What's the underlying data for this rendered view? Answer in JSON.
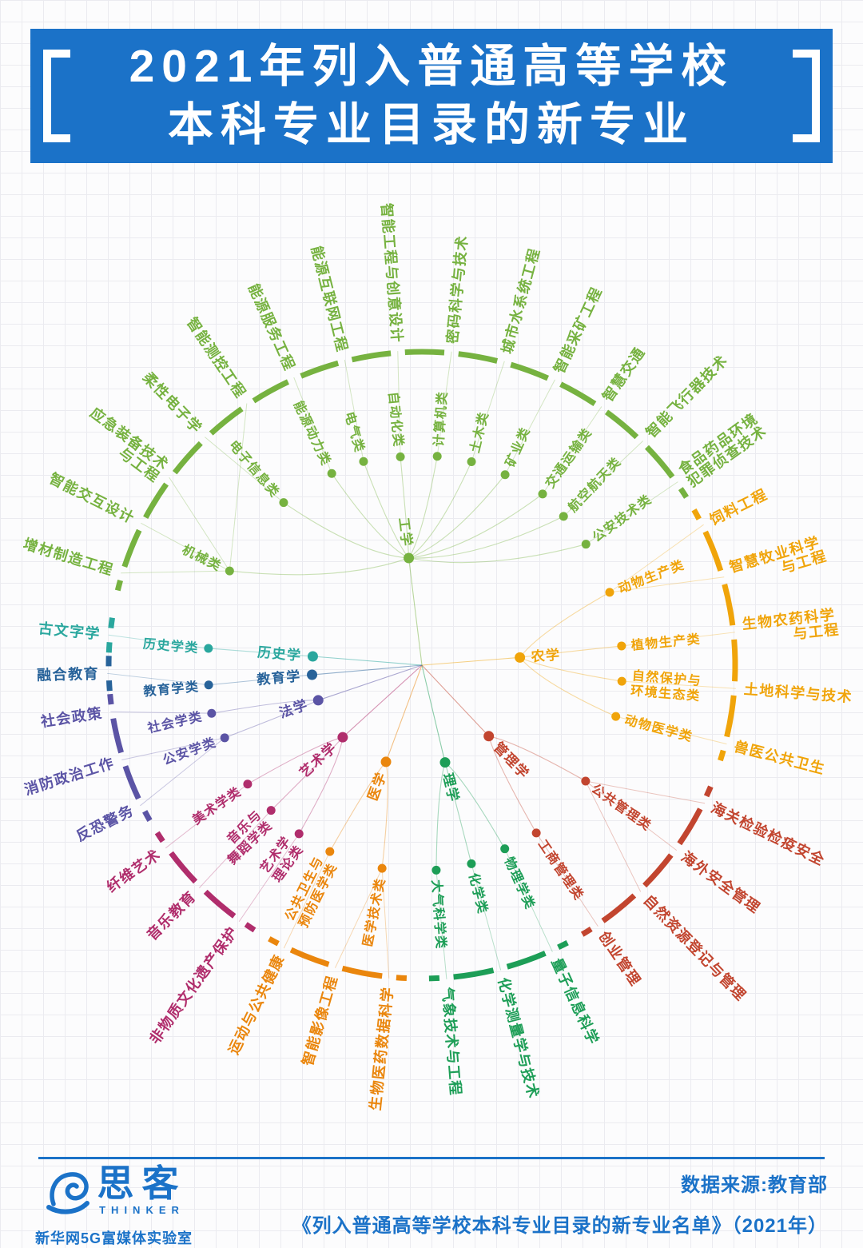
{
  "title": {
    "line1": "2021年列入普通高等学校",
    "line2": "本科专业目录的新专业"
  },
  "footer": {
    "brand": "思客",
    "brand_sub": "THINKER",
    "lab": "新华网5G富媒体实验室",
    "source_line1": "数据来源:教育部",
    "source_line2": "《列入普通高等学校本科专业目录的新专业名单》（2021年）"
  },
  "colors": {
    "banner_blue": "#1b72c8",
    "engineering": "#76b240",
    "agriculture": "#f0a40a",
    "management": "#c2452f",
    "science": "#1d9e57",
    "medicine": "#ea860d",
    "arts": "#b02d6c",
    "law": "#5b54a5",
    "education": "#28639a",
    "history": "#2aa79e"
  },
  "chart_data": {
    "type": "radial-tree",
    "title": "2021年列入普通高等学校本科专业目录的新专业",
    "center": [
      528,
      832
    ],
    "ring_radius": 392,
    "legend_position": "none",
    "grid": true,
    "disciplines": [
      {
        "name": "工学",
        "color": "#76b240",
        "angle": 353,
        "r": 135,
        "categories": [
          {
            "name": "机械类",
            "angle": 296.1,
            "r": 268
          },
          {
            "name": "电子信息类",
            "angle": 319.6,
            "r": 267
          },
          {
            "name": "能源动力类",
            "angle": 334.8,
            "r": 265
          },
          {
            "name": "电气类",
            "angle": 344,
            "r": 265
          },
          {
            "name": "自动化类",
            "angle": 354.1,
            "r": 262
          },
          {
            "name": "计算机类",
            "angle": 364.2,
            "r": 262
          },
          {
            "name": "土木类",
            "angle": 373.7,
            "r": 262
          },
          {
            "name": "矿业类",
            "angle": 383.6,
            "r": 260
          },
          {
            "name": "交通运输类",
            "angle": 395.2,
            "r": 262
          },
          {
            "name": "航空航天类",
            "angle": 403.6,
            "r": 257
          },
          {
            "name": "公安技术类",
            "angle": 413.6,
            "r": 255
          }
        ],
        "leaves": [
          {
            "name": "增材制造工程",
            "angle": 287,
            "parent": "机械类"
          },
          {
            "name": "智能交互设计",
            "angle": 296.8,
            "parent": "机械类"
          },
          {
            "name": "应急装备技术与工程",
            "lines": [
              "应急装备技术",
              "与工程"
            ],
            "angle": 306.6,
            "parent": "机械类"
          },
          {
            "name": "柔性电子学",
            "angle": 316.4,
            "parent": "电子信息类"
          },
          {
            "name": "智能测控工程",
            "angle": 326.2,
            "parent": "机械类"
          },
          {
            "name": "能源服务工程",
            "angle": 336,
            "parent": "能源动力类"
          },
          {
            "name": "能源互联网工程",
            "angle": 345.8,
            "parent": "电气类"
          },
          {
            "name": "智能工程与创意设计",
            "angle": 355.6,
            "parent": "自动化类"
          },
          {
            "name": "密码科学与技术",
            "angle": 365.4,
            "parent": "计算机类"
          },
          {
            "name": "城市水系统工程",
            "angle": 375.2,
            "parent": "土木类"
          },
          {
            "name": "智能采矿工程",
            "angle": 385,
            "parent": "矿业类"
          },
          {
            "name": "智慧交通",
            "angle": 394.8,
            "parent": "交通运输类"
          },
          {
            "name": "智能飞行器技术",
            "angle": 404.6,
            "parent": "航空航天类"
          },
          {
            "name": "食品药品环境犯罪侦查技术",
            "lines": [
              "食品药品环境",
              "犯罪侦查技术"
            ],
            "angle": 414.4,
            "parent": "公安技术类"
          }
        ]
      },
      {
        "name": "农学",
        "color": "#f0a40a",
        "angle": 85.5,
        "r": 123,
        "categories": [
          {
            "name": "动物生产类",
            "angle": 68.8,
            "r": 252
          },
          {
            "name": "植物生产类",
            "angle": 84.5,
            "r": 251
          },
          {
            "name": "自然保护与环境生态类",
            "lines": [
              "自然保护与",
              "环境生态类"
            ],
            "angle": 94.6,
            "r": 251
          },
          {
            "name": "动物医学类",
            "angle": 104.8,
            "r": 251
          }
        ],
        "leaves": [
          {
            "name": "饲料工程",
            "angle": 63.5,
            "parent": "动物生产类"
          },
          {
            "name": "智慧牧业科学与工程",
            "lines": [
              "智慧牧业科学",
              "与工程"
            ],
            "dx2": 62,
            "angle": 73.75,
            "parent": "动物生产类"
          },
          {
            "name": "生物农药科学与工程",
            "lines": [
              "生物农药科学",
              "与工程"
            ],
            "dx2": 62,
            "angle": 84,
            "parent": "植物生产类"
          },
          {
            "name": "土地科学与技术",
            "angle": 94.25,
            "parent": "自然保护与环境生态类"
          },
          {
            "name": "兽医公共卫生",
            "angle": 104.5,
            "parent": "动物医学类"
          }
        ]
      },
      {
        "name": "管理学",
        "color": "#c2452f",
        "angle": 136.7,
        "r": 122,
        "categories": [
          {
            "name": "公共管理类",
            "angle": 125.3,
            "r": 251
          },
          {
            "name": "工商管理类",
            "angle": 145.7,
            "r": 254
          }
        ],
        "leaves": [
          {
            "name": "海关检验检疫安全",
            "angle": 116,
            "parent": "公共管理类"
          },
          {
            "name": "海外安全管理",
            "angle": 126,
            "parent": "公共管理类"
          },
          {
            "name": "自然资源登记与管理",
            "angle": 136,
            "parent": "公共管理类"
          },
          {
            "name": "创业管理",
            "angle": 146,
            "parent": "工商管理类"
          }
        ]
      },
      {
        "name": "理学",
        "color": "#1d9e57",
        "angle": 166.6,
        "r": 125,
        "categories": [
          {
            "name": "物理学类",
            "angle": 155.7,
            "r": 252
          },
          {
            "name": "化学类",
            "angle": 166,
            "r": 256
          },
          {
            "name": "大气科学类",
            "angle": 176,
            "r": 257
          }
        ],
        "leaves": [
          {
            "name": "量子信息科学",
            "angle": 155.5,
            "parent": "物理学类"
          },
          {
            "name": "化学测量学与技术",
            "angle": 165.5,
            "parent": "化学类"
          },
          {
            "name": "气象技术与工程",
            "angle": 175.5,
            "parent": "大气科学类"
          }
        ]
      },
      {
        "name": "医学",
        "color": "#ea860d",
        "angle": 200.4,
        "r": 129,
        "categories": [
          {
            "name": "医学技术类",
            "angle": 191.1,
            "r": 259
          },
          {
            "name": "公共卫生与预防医学类",
            "lines": [
              "公共卫生与",
              "预防医学类"
            ],
            "angle": 206.3,
            "r": 260
          }
        ],
        "leaves": [
          {
            "name": "生物医药数据科学",
            "angle": 186,
            "parent": "医学技术类"
          },
          {
            "name": "智能影像工程",
            "angle": 196,
            "parent": "医学技术类"
          },
          {
            "name": "运动与公共健康",
            "angle": 206,
            "parent": "公共卫生与预防医学类"
          }
        ]
      },
      {
        "name": "艺术学",
        "color": "#b02d6c",
        "angle": 227.7,
        "r": 134,
        "categories": [
          {
            "name": "艺术学理论类",
            "lines": [
              "艺术学",
              "理论类"
            ],
            "angle": 216.1,
            "r": 261
          },
          {
            "name": "音乐与舞蹈学类",
            "lines": [
              "音乐与",
              "舞蹈学类"
            ],
            "angle": 226.1,
            "r": 262
          },
          {
            "name": "美术学类",
            "angle": 235.7,
            "r": 264
          }
        ],
        "leaves": [
          {
            "name": "非物质文化遗产保护",
            "angle": 215.5,
            "parent": "艺术学理论类"
          },
          {
            "name": "音乐教育",
            "angle": 225,
            "parent": "音乐与舞蹈学类"
          },
          {
            "name": "纤维艺术",
            "angle": 234.5,
            "parent": "美术学类"
          }
        ]
      },
      {
        "name": "法学",
        "color": "#5b54a5",
        "angle": 251.3,
        "r": 137,
        "categories": [
          {
            "name": "公安学类",
            "angle": 249.8,
            "r": 263
          },
          {
            "name": "社会学类",
            "angle": 257.1,
            "r": 270
          }
        ],
        "leaves": [
          {
            "name": "反恐警务",
            "angle": 243.5,
            "parent": "公安学类"
          },
          {
            "name": "消防政治工作",
            "angle": 252.5,
            "parent": "公安学类"
          },
          {
            "name": "社会政策",
            "angle": 261.5,
            "parent": "社会学类"
          }
        ]
      },
      {
        "name": "教育学",
        "color": "#28639a",
        "angle": 265,
        "r": 138,
        "categories": [
          {
            "name": "教育学类",
            "angle": 264.7,
            "r": 268
          }
        ],
        "leaves": [
          {
            "name": "融合教育",
            "angle": 268.5,
            "parent": "教育学类"
          }
        ]
      },
      {
        "name": "历史学",
        "color": "#2aa79e",
        "angle": 274.6,
        "r": 137,
        "categories": [
          {
            "name": "历史学类",
            "angle": 274.5,
            "r": 268
          }
        ],
        "leaves": [
          {
            "name": "古文字学",
            "angle": 275.5,
            "parent": "历史学类"
          }
        ]
      }
    ]
  }
}
